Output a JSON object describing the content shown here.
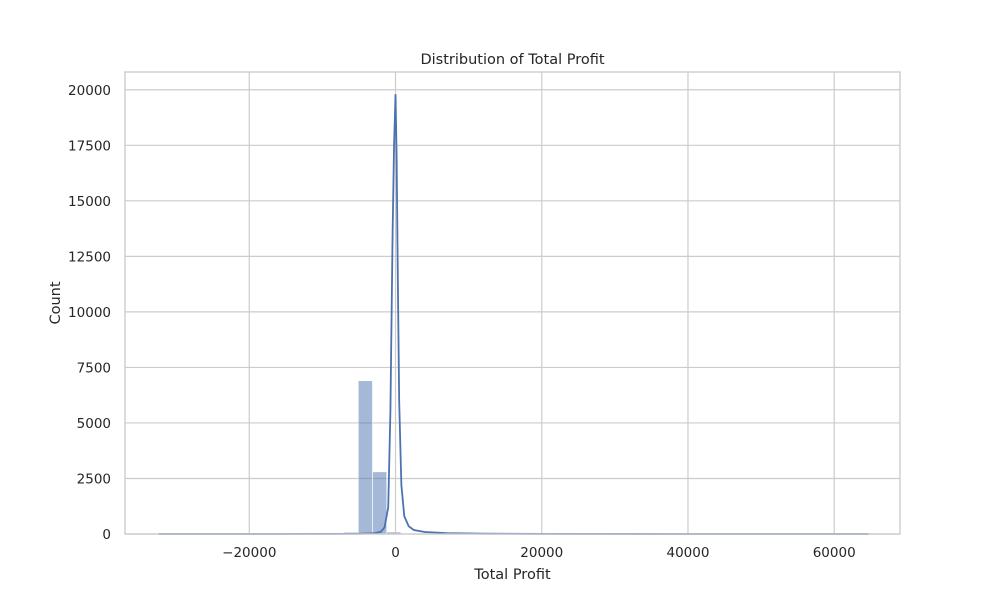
{
  "chart_data": {
    "type": "bar",
    "subtype": "histogram with kde",
    "title": "Distribution of Total Profit",
    "xlabel": "Total Profit",
    "ylabel": "Count",
    "xlim": [
      -37000,
      69000
    ],
    "ylim": [
      0,
      20800
    ],
    "x_ticks": [
      -20000,
      0,
      20000,
      40000,
      60000
    ],
    "x_tick_labels": [
      "−20000",
      "0",
      "20000",
      "40000",
      "60000"
    ],
    "y_ticks": [
      0,
      2500,
      5000,
      7500,
      10000,
      12500,
      15000,
      17500,
      20000
    ],
    "y_tick_labels": [
      "0",
      "2500",
      "5000",
      "7500",
      "10000",
      "12500",
      "15000",
      "17500",
      "20000"
    ],
    "grid": true,
    "bin_start": -32400,
    "bin_width": 1950,
    "bar_counts": [
      2,
      1,
      1,
      1,
      2,
      2,
      3,
      4,
      6,
      10,
      18,
      35,
      60,
      80,
      6900,
      2800,
      90,
      40,
      20,
      12,
      8,
      6,
      5,
      4,
      3,
      3,
      2,
      2,
      2,
      1,
      1,
      1,
      1,
      1,
      1,
      1,
      1,
      1,
      1,
      1,
      1,
      1,
      1,
      1,
      1,
      1,
      1,
      1,
      1,
      2
    ],
    "kde": {
      "x": [
        -32400,
        -20000,
        -10000,
        -5000,
        -3000,
        -2000,
        -1500,
        -1000,
        -700,
        -400,
        -200,
        0,
        150,
        300,
        500,
        800,
        1200,
        1800,
        2500,
        4000,
        7000,
        12000,
        20000,
        40000,
        64700
      ],
      "y": [
        0,
        0,
        5,
        10,
        30,
        100,
        300,
        1200,
        5500,
        13500,
        17500,
        19800,
        17000,
        12000,
        6000,
        2200,
        800,
        350,
        180,
        90,
        40,
        15,
        5,
        0,
        0
      ]
    },
    "colors": {
      "bar": "#4c72b0",
      "line": "#4c72b0",
      "grid": "#cccccc"
    }
  }
}
